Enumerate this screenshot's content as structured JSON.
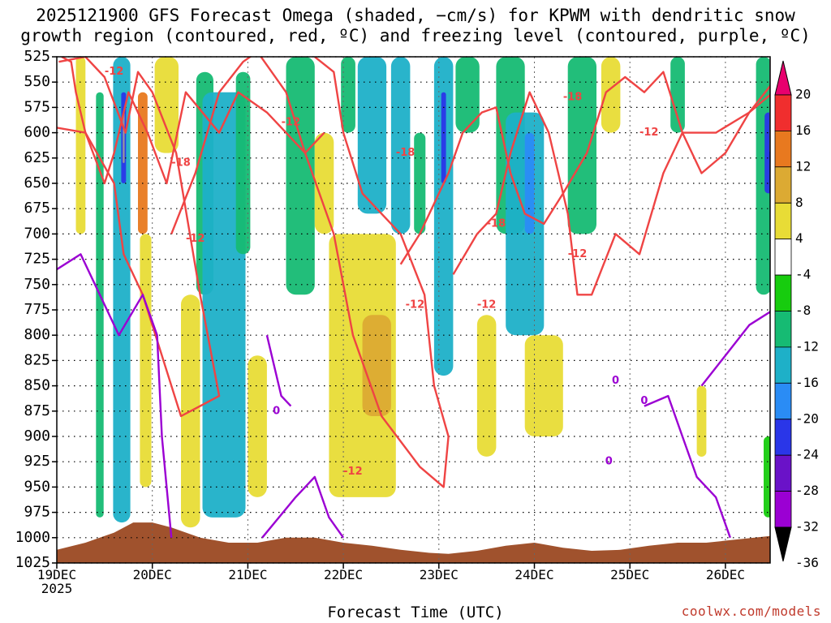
{
  "title_line1": "2025121900 GFS Forecast Omega (shaded, −cm/s) for KPWM with dendritic snow",
  "title_line2": "growth region (contoured, red, ºC) and freezing level (contoured, purple, ºC)",
  "xaxis_label": "Forecast Time (UTC)",
  "credit": "coolwx.com/models",
  "colors": {
    "terrain": "#a0522d",
    "dgz_contour": "#ef4444",
    "freezing_contour": "#9b00d3",
    "grid": "#000000"
  },
  "chart_data": {
    "type": "heatmap",
    "title": "2025121900 GFS Forecast Omega (shaded, −cm/s) for KPWM with dendritic snow growth region (contoured, red, ºC) and freezing level (contoured, purple, ºC)",
    "xlabel": "Forecast Time (UTC)",
    "ylabel": "",
    "y_scale": "pressure (inverted)",
    "y_ticks": [
      "525",
      "550",
      "575",
      "600",
      "625",
      "650",
      "675",
      "700",
      "725",
      "750",
      "775",
      "800",
      "825",
      "850",
      "875",
      "900",
      "925",
      "950",
      "975",
      "1000",
      "1025"
    ],
    "x_ticks": [
      {
        "label": "19DEC",
        "sublabel": "2025"
      },
      {
        "label": "20DEC",
        "sublabel": ""
      },
      {
        "label": "21DEC",
        "sublabel": ""
      },
      {
        "label": "22DEC",
        "sublabel": ""
      },
      {
        "label": "23DEC",
        "sublabel": ""
      },
      {
        "label": "24DEC",
        "sublabel": ""
      },
      {
        "label": "25DEC",
        "sublabel": ""
      },
      {
        "label": "26DEC",
        "sublabel": ""
      }
    ],
    "x_range_days": [
      0,
      7.5
    ],
    "grid": true,
    "colorbar": {
      "ticks": [
        "20",
        "16",
        "12",
        "8",
        "4",
        "-4",
        "-8",
        "-12",
        "-16",
        "-20",
        "-24",
        "-28",
        "-32",
        "-36"
      ],
      "bands": [
        {
          "from": 20,
          "to": 24,
          "color": "#e8006e"
        },
        {
          "from": 16,
          "to": 20,
          "color": "#f02e2e"
        },
        {
          "from": 12,
          "to": 16,
          "color": "#e8791f"
        },
        {
          "from": 8,
          "to": 12,
          "color": "#dcaa33"
        },
        {
          "from": 4,
          "to": 8,
          "color": "#e8dc36"
        },
        {
          "from": -4,
          "to": 4,
          "color": "#ffffff"
        },
        {
          "from": -8,
          "to": -4,
          "color": "#17cc0e"
        },
        {
          "from": -12,
          "to": -8,
          "color": "#16bb73"
        },
        {
          "from": -16,
          "to": -12,
          "color": "#1eb0c8"
        },
        {
          "from": -20,
          "to": -16,
          "color": "#2a8cf5"
        },
        {
          "from": -24,
          "to": -20,
          "color": "#2a36e8"
        },
        {
          "from": -28,
          "to": -24,
          "color": "#6a12c8"
        },
        {
          "from": -32,
          "to": -28,
          "color": "#9b00d3"
        },
        {
          "from": -36,
          "to": -32,
          "color": "#9a9a9a"
        }
      ]
    },
    "omega_patches": [
      {
        "t": 0.25,
        "p0": 525,
        "p1": 700,
        "w": 0.1,
        "v": 6
      },
      {
        "t": 0.45,
        "p0": 560,
        "p1": 980,
        "w": 0.08,
        "v": -10
      },
      {
        "t": 0.68,
        "p0": 525,
        "p1": 985,
        "w": 0.18,
        "v": -14
      },
      {
        "t": 0.7,
        "p0": 560,
        "p1": 650,
        "w": 0.05,
        "v": -24
      },
      {
        "t": 0.7,
        "p0": 580,
        "p1": 630,
        "w": 0.02,
        "v": -36
      },
      {
        "t": 0.9,
        "p0": 560,
        "p1": 700,
        "w": 0.1,
        "v": 14
      },
      {
        "t": 0.93,
        "p0": 700,
        "p1": 950,
        "w": 0.12,
        "v": 6
      },
      {
        "t": 1.15,
        "p0": 525,
        "p1": 620,
        "w": 0.25,
        "v": 6
      },
      {
        "t": 1.4,
        "p0": 760,
        "p1": 990,
        "w": 0.2,
        "v": 5
      },
      {
        "t": 1.55,
        "p0": 540,
        "p1": 760,
        "w": 0.18,
        "v": -9
      },
      {
        "t": 1.75,
        "p0": 560,
        "p1": 980,
        "w": 0.45,
        "v": -14
      },
      {
        "t": 1.95,
        "p0": 540,
        "p1": 720,
        "w": 0.15,
        "v": -10
      },
      {
        "t": 2.1,
        "p0": 820,
        "p1": 960,
        "w": 0.2,
        "v": 5
      },
      {
        "t": 2.55,
        "p0": 525,
        "p1": 760,
        "w": 0.3,
        "v": -9
      },
      {
        "t": 2.8,
        "p0": 600,
        "p1": 700,
        "w": 0.2,
        "v": 5
      },
      {
        "t": 3.05,
        "p0": 525,
        "p1": 600,
        "w": 0.15,
        "v": -9
      },
      {
        "t": 3.2,
        "p0": 700,
        "p1": 960,
        "w": 0.7,
        "v": 5
      },
      {
        "t": 3.35,
        "p0": 780,
        "p1": 880,
        "w": 0.3,
        "v": 9
      },
      {
        "t": 3.3,
        "p0": 525,
        "p1": 680,
        "w": 0.3,
        "v": -14
      },
      {
        "t": 3.6,
        "p0": 525,
        "p1": 700,
        "w": 0.2,
        "v": -14
      },
      {
        "t": 3.8,
        "p0": 600,
        "p1": 700,
        "w": 0.12,
        "v": -12
      },
      {
        "t": 4.05,
        "p0": 525,
        "p1": 840,
        "w": 0.2,
        "v": -14
      },
      {
        "t": 4.05,
        "p0": 560,
        "p1": 650,
        "w": 0.05,
        "v": -24
      },
      {
        "t": 4.3,
        "p0": 525,
        "p1": 600,
        "w": 0.25,
        "v": -10
      },
      {
        "t": 4.5,
        "p0": 780,
        "p1": 920,
        "w": 0.2,
        "v": 5
      },
      {
        "t": 4.75,
        "p0": 525,
        "p1": 700,
        "w": 0.3,
        "v": -10
      },
      {
        "t": 4.9,
        "p0": 580,
        "p1": 800,
        "w": 0.4,
        "v": -14
      },
      {
        "t": 4.95,
        "p0": 600,
        "p1": 700,
        "w": 0.1,
        "v": -18
      },
      {
        "t": 5.1,
        "p0": 800,
        "p1": 900,
        "w": 0.4,
        "v": 5
      },
      {
        "t": 5.5,
        "p0": 525,
        "p1": 700,
        "w": 0.3,
        "v": -9
      },
      {
        "t": 5.8,
        "p0": 525,
        "p1": 600,
        "w": 0.2,
        "v": 5
      },
      {
        "t": 6.5,
        "p0": 525,
        "p1": 600,
        "w": 0.15,
        "v": -9
      },
      {
        "t": 6.75,
        "p0": 850,
        "p1": 920,
        "w": 0.1,
        "v": 7
      },
      {
        "t": 7.4,
        "p0": 525,
        "p1": 760,
        "w": 0.16,
        "v": -10
      },
      {
        "t": 7.45,
        "p0": 580,
        "p1": 660,
        "w": 0.08,
        "v": -22
      },
      {
        "t": 7.48,
        "p0": 525,
        "p1": 620,
        "w": 0.04,
        "v": -36
      },
      {
        "t": 7.45,
        "p0": 900,
        "p1": 980,
        "w": 0.1,
        "v": -8
      }
    ],
    "dgz_contours": [
      {
        "level": -12,
        "points": [
          [
            0.02,
            530
          ],
          [
            0.3,
            525
          ],
          [
            0.5,
            545
          ],
          [
            0.72,
            600
          ],
          [
            0.85,
            540
          ],
          [
            1.0,
            560
          ],
          [
            1.25,
            620
          ],
          [
            1.5,
            760
          ],
          [
            1.7,
            860
          ],
          [
            1.3,
            880
          ],
          [
            0.9,
            760
          ],
          [
            0.7,
            720
          ],
          [
            0.6,
            650
          ],
          [
            0.3,
            600
          ],
          [
            0.0,
            595
          ]
        ]
      },
      {
        "level": -12,
        "points": [
          [
            1.2,
            700
          ],
          [
            1.45,
            640
          ],
          [
            1.7,
            560
          ],
          [
            1.95,
            530
          ],
          [
            2.1,
            520
          ],
          [
            2.4,
            560
          ],
          [
            2.6,
            620
          ],
          [
            2.9,
            700
          ],
          [
            3.1,
            800
          ],
          [
            3.4,
            880
          ],
          [
            3.8,
            930
          ],
          [
            4.05,
            950
          ],
          [
            4.1,
            900
          ],
          [
            3.95,
            850
          ],
          [
            3.85,
            760
          ],
          [
            3.6,
            700
          ],
          [
            3.2,
            660
          ],
          [
            3.0,
            600
          ],
          [
            2.9,
            540
          ],
          [
            2.7,
            525
          ]
        ]
      },
      {
        "level": -18,
        "points": [
          [
            0.05,
            525
          ],
          [
            0.15,
            530
          ],
          [
            0.2,
            560
          ],
          [
            0.3,
            600
          ],
          [
            0.5,
            650
          ],
          [
            0.6,
            620
          ],
          [
            0.75,
            560
          ],
          [
            0.95,
            600
          ],
          [
            1.15,
            650
          ],
          [
            1.35,
            560
          ],
          [
            1.7,
            600
          ],
          [
            1.9,
            560
          ],
          [
            2.2,
            580
          ],
          [
            2.4,
            600
          ],
          [
            2.6,
            620
          ],
          [
            2.8,
            600
          ]
        ]
      },
      {
        "level": -18,
        "points": [
          [
            3.6,
            730
          ],
          [
            3.8,
            700
          ],
          [
            4.0,
            660
          ],
          [
            4.1,
            640
          ],
          [
            4.25,
            600
          ],
          [
            4.45,
            580
          ],
          [
            4.6,
            575
          ],
          [
            4.75,
            640
          ],
          [
            4.9,
            680
          ],
          [
            5.1,
            690
          ],
          [
            5.3,
            660
          ],
          [
            5.55,
            620
          ],
          [
            5.75,
            560
          ],
          [
            5.95,
            545
          ],
          [
            6.15,
            560
          ],
          [
            6.35,
            540
          ],
          [
            6.55,
            600
          ],
          [
            6.75,
            640
          ],
          [
            7.0,
            620
          ],
          [
            7.25,
            580
          ],
          [
            7.5,
            560
          ]
        ]
      },
      {
        "level": -12,
        "points": [
          [
            4.15,
            740
          ],
          [
            4.4,
            700
          ],
          [
            4.6,
            680
          ],
          [
            4.75,
            620
          ],
          [
            4.95,
            560
          ],
          [
            5.15,
            600
          ],
          [
            5.35,
            680
          ],
          [
            5.45,
            760
          ],
          [
            5.6,
            760
          ],
          [
            5.85,
            700
          ],
          [
            6.1,
            720
          ],
          [
            6.35,
            640
          ],
          [
            6.55,
            600
          ],
          [
            6.9,
            600
          ],
          [
            7.25,
            580
          ],
          [
            7.5,
            550
          ]
        ]
      }
    ],
    "freezing_contours": [
      {
        "level": 0,
        "points": [
          [
            0.0,
            735
          ],
          [
            0.25,
            720
          ],
          [
            0.45,
            760
          ],
          [
            0.65,
            800
          ],
          [
            0.9,
            760
          ],
          [
            1.05,
            800
          ],
          [
            1.1,
            900
          ],
          [
            1.2,
            1000
          ]
        ]
      },
      {
        "level": 0,
        "points": [
          [
            2.2,
            800
          ],
          [
            2.35,
            860
          ],
          [
            2.45,
            870
          ]
        ]
      },
      {
        "level": 0,
        "points": [
          [
            2.15,
            1000
          ],
          [
            2.5,
            960
          ],
          [
            2.7,
            940
          ],
          [
            2.85,
            980
          ],
          [
            3.0,
            1000
          ]
        ]
      },
      {
        "level": 0,
        "points": [
          [
            6.15,
            870
          ],
          [
            6.4,
            860
          ],
          [
            6.55,
            900
          ],
          [
            6.7,
            940
          ],
          [
            6.9,
            960
          ],
          [
            7.05,
            1000
          ]
        ]
      },
      {
        "level": 0,
        "points": [
          [
            6.75,
            850
          ],
          [
            7.0,
            820
          ],
          [
            7.25,
            790
          ],
          [
            7.5,
            775
          ]
        ]
      }
    ],
    "contour_labels": [
      {
        "text": "-12",
        "t": 0.6,
        "p": 540,
        "color": "#ef4444"
      },
      {
        "text": "-18",
        "t": 1.3,
        "p": 630,
        "color": "#ef4444"
      },
      {
        "text": "-12",
        "t": 1.45,
        "p": 705,
        "color": "#ef4444"
      },
      {
        "text": "-12",
        "t": 2.45,
        "p": 590,
        "color": "#ef4444"
      },
      {
        "text": "-18",
        "t": 3.65,
        "p": 620,
        "color": "#ef4444"
      },
      {
        "text": "-12",
        "t": 3.75,
        "p": 770,
        "color": "#ef4444"
      },
      {
        "text": "-12",
        "t": 3.1,
        "p": 935,
        "color": "#ef4444"
      },
      {
        "text": "-18",
        "t": 4.6,
        "p": 690,
        "color": "#ef4444"
      },
      {
        "text": "-12",
        "t": 4.5,
        "p": 770,
        "color": "#ef4444"
      },
      {
        "text": "-18",
        "t": 5.4,
        "p": 565,
        "color": "#ef4444"
      },
      {
        "text": "-12",
        "t": 6.2,
        "p": 600,
        "color": "#ef4444"
      },
      {
        "text": "-12",
        "t": 5.45,
        "p": 720,
        "color": "#ef4444"
      },
      {
        "text": "0",
        "t": 2.3,
        "p": 875,
        "color": "#9b00d3"
      },
      {
        "text": "0",
        "t": 5.85,
        "p": 845,
        "color": "#9b00d3"
      },
      {
        "text": "0",
        "t": 5.78,
        "p": 925,
        "color": "#9b00d3"
      },
      {
        "text": "0",
        "t": 6.15,
        "p": 865,
        "color": "#9b00d3"
      }
    ],
    "surface_pressure": [
      [
        0.0,
        1012
      ],
      [
        0.3,
        1005
      ],
      [
        0.6,
        995
      ],
      [
        0.8,
        985
      ],
      [
        1.0,
        985
      ],
      [
        1.2,
        990
      ],
      [
        1.5,
        1000
      ],
      [
        1.8,
        1005
      ],
      [
        2.1,
        1005
      ],
      [
        2.4,
        1000
      ],
      [
        2.7,
        1000
      ],
      [
        3.0,
        1005
      ],
      [
        3.3,
        1008
      ],
      [
        3.6,
        1012
      ],
      [
        3.9,
        1015
      ],
      [
        4.1,
        1016
      ],
      [
        4.4,
        1013
      ],
      [
        4.7,
        1008
      ],
      [
        5.0,
        1005
      ],
      [
        5.3,
        1010
      ],
      [
        5.6,
        1013
      ],
      [
        5.9,
        1012
      ],
      [
        6.2,
        1008
      ],
      [
        6.5,
        1005
      ],
      [
        6.8,
        1005
      ],
      [
        7.1,
        1002
      ],
      [
        7.5,
        998
      ]
    ]
  }
}
